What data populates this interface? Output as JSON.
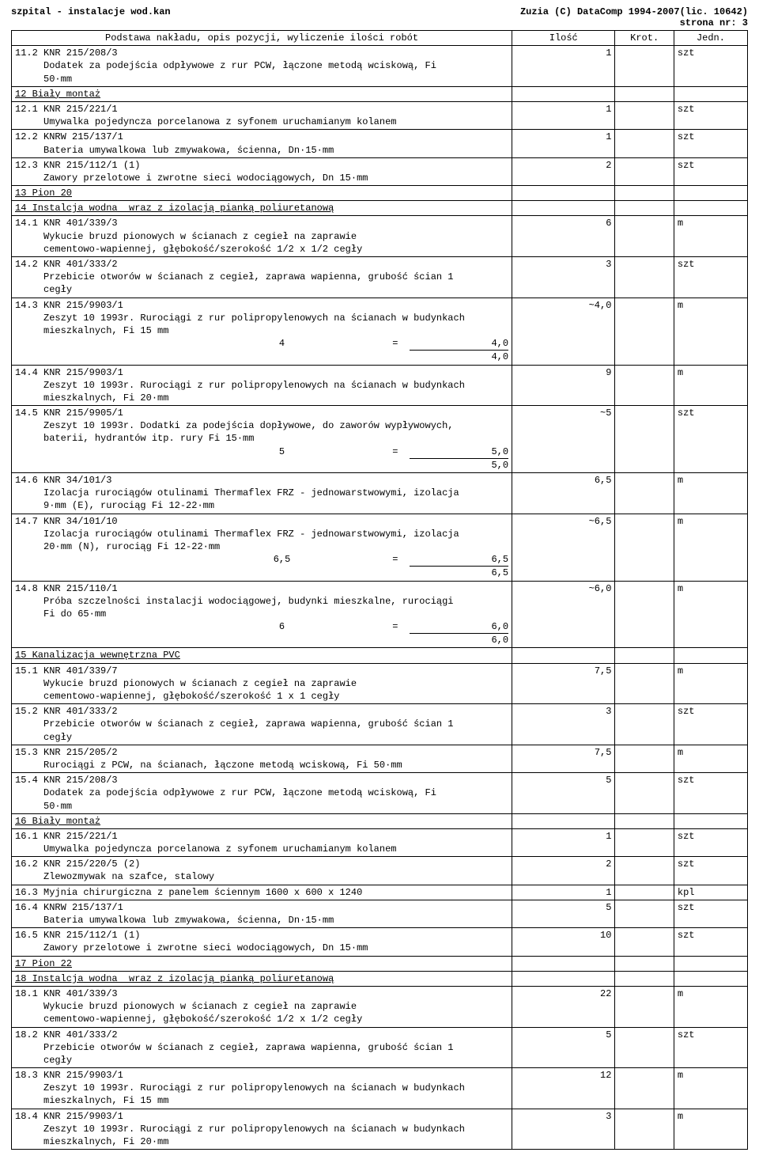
{
  "header": {
    "left": "szpital -  instalacje wod.kan",
    "right1": "Zuzia (C) DataComp 1994-2007(lic. 10642)",
    "right2": "strona nr:   3"
  },
  "table": {
    "columns": [
      "Podstawa nakładu, opis pozycji, wyliczenie ilości robót",
      "Ilość",
      "Krot.",
      "Jedn."
    ],
    "rows": [
      {
        "desc": "11.2 KNR 215/208/3\n     Dodatek za podejścia odpływowe z rur PCW, łączone metodą wciskową, Fi\n     50·mm",
        "ilosc": "1",
        "jedn": "szt"
      },
      {
        "desc": "12 Biały montaż",
        "section": true
      },
      {
        "desc": "12.1 KNR 215/221/1\n     Umywalka pojedyncza porcelanowa z syfonem uruchamianym kolanem",
        "ilosc": "1",
        "jedn": "szt"
      },
      {
        "desc": "12.2 KNRW 215/137/1\n     Bateria umywalkowa lub zmywakowa, ścienna, Dn·15·mm",
        "ilosc": "1",
        "jedn": "szt"
      },
      {
        "desc": "12.3 KNR 215/112/1 (1)\n     Zawory przelotowe i zwrotne sieci wodociągowych, Dn 15·mm",
        "ilosc": "2",
        "jedn": "szt"
      },
      {
        "desc": "13 Pion 20",
        "section": true
      },
      {
        "desc": "14 Instalcja wodna  wraz z izolacją pianką poliuretanową",
        "section": true
      },
      {
        "desc": "14.1 KNR 401/339/3\n     Wykucie bruzd pionowych w ścianach z cegieł na zaprawie\n     cementowo-wapiennej, głębokość/szerokość 1/2 x 1/2 cegły",
        "ilosc": "6",
        "jedn": "m"
      },
      {
        "desc": "14.2 KNR 401/333/2\n     Przebicie otworów w ścianach z cegieł, zaprawa wapienna, grubość ścian 1\n     cegły",
        "ilosc": "3",
        "jedn": "szt"
      },
      {
        "desc": "14.3 KNR 215/9903/1\n     Zeszyt 10 1993r. Rurociągi z rur polipropylenowych na ścianach w budynkach\n     mieszkalnych, Fi 15 mm",
        "calc": {
          "lhs": "4",
          "rhs": "4,0",
          "total": "4,0"
        },
        "ilosc": "~4,0",
        "jedn": "m"
      },
      {
        "desc": "14.4 KNR 215/9903/1\n     Zeszyt 10 1993r. Rurociągi z rur polipropylenowych na ścianach w budynkach\n     mieszkalnych, Fi 20·mm",
        "ilosc": "9",
        "jedn": "m"
      },
      {
        "desc": "14.5 KNR 215/9905/1\n     Zeszyt 10 1993r. Dodatki za podejścia dopływowe, do zaworów wypływowych,\n     baterii, hydrantów itp. rury Fi 15·mm",
        "calc": {
          "lhs": "5",
          "rhs": "5,0",
          "total": "5,0"
        },
        "ilosc": "~5",
        "jedn": "szt"
      },
      {
        "desc": "14.6 KNR 34/101/3\n     Izolacja rurociągów otulinami Thermaflex FRZ - jednowarstwowymi, izolacja\n     9·mm (E), rurociąg Fi 12-22·mm",
        "ilosc": "6,5",
        "jedn": "m"
      },
      {
        "desc": "14.7 KNR 34/101/10\n     Izolacja rurociągów otulinami Thermaflex FRZ - jednowarstwowymi, izolacja\n     20·mm (N), rurociąg Fi 12-22·mm",
        "calc": {
          "lhs": "6,5",
          "rhs": "6,5",
          "total": "6,5"
        },
        "ilosc": "~6,5",
        "jedn": "m"
      },
      {
        "desc": "14.8 KNR 215/110/1\n     Próba szczelności instalacji wodociągowej, budynki mieszkalne, rurociągi\n     Fi do 65·mm",
        "calc": {
          "lhs": "6",
          "rhs": "6,0",
          "total": "6,0"
        },
        "ilosc": "~6,0",
        "jedn": "m"
      },
      {
        "desc": "15 Kanalizacja wewnętrzna PVC",
        "section": true
      },
      {
        "desc": "15.1 KNR 401/339/7\n     Wykucie bruzd pionowych w ścianach z cegieł na zaprawie\n     cementowo-wapiennej, głębokość/szerokość 1 x 1 cegły",
        "ilosc": "7,5",
        "jedn": "m"
      },
      {
        "desc": "15.2 KNR 401/333/2\n     Przebicie otworów w ścianach z cegieł, zaprawa wapienna, grubość ścian 1\n     cegły",
        "ilosc": "3",
        "jedn": "szt"
      },
      {
        "desc": "15.3 KNR 215/205/2\n     Rurociągi z PCW, na ścianach, łączone metodą wciskową, Fi 50·mm",
        "ilosc": "7,5",
        "jedn": "m"
      },
      {
        "desc": "15.4 KNR 215/208/3\n     Dodatek za podejścia odpływowe z rur PCW, łączone metodą wciskową, Fi\n     50·mm",
        "ilosc": "5",
        "jedn": "szt"
      },
      {
        "desc": "16 Biały montaż",
        "section": true
      },
      {
        "desc": "16.1 KNR 215/221/1\n     Umywalka pojedyncza porcelanowa z syfonem uruchamianym kolanem",
        "ilosc": "1",
        "jedn": "szt"
      },
      {
        "desc": "16.2 KNR 215/220/5 (2)\n     Zlewozmywak na szafce, stalowy",
        "ilosc": "2",
        "jedn": "szt"
      },
      {
        "desc": "16.3 Myjnia chirurgiczna z panelem ściennym 1600 x 600 x 1240",
        "ilosc": "1",
        "jedn": "kpl"
      },
      {
        "desc": "16.4 KNRW 215/137/1\n     Bateria umywalkowa lub zmywakowa, ścienna, Dn·15·mm",
        "ilosc": "5",
        "jedn": "szt"
      },
      {
        "desc": "16.5 KNR 215/112/1 (1)\n     Zawory przelotowe i zwrotne sieci wodociągowych, Dn 15·mm",
        "ilosc": "10",
        "jedn": "szt"
      },
      {
        "desc": "17 Pion 22",
        "section": true
      },
      {
        "desc": "18 Instalcja wodna  wraz z izolacją pianką poliuretanową",
        "section": true
      },
      {
        "desc": "18.1 KNR 401/339/3\n     Wykucie bruzd pionowych w ścianach z cegieł na zaprawie\n     cementowo-wapiennej, głębokość/szerokość 1/2 x 1/2 cegły",
        "ilosc": "22",
        "jedn": "m"
      },
      {
        "desc": "18.2 KNR 401/333/2\n     Przebicie otworów w ścianach z cegieł, zaprawa wapienna, grubość ścian 1\n     cegły",
        "ilosc": "5",
        "jedn": "szt"
      },
      {
        "desc": "18.3 KNR 215/9903/1\n     Zeszyt 10 1993r. Rurociągi z rur polipropylenowych na ścianach w budynkach\n     mieszkalnych, Fi 15 mm",
        "ilosc": "12",
        "jedn": "m"
      },
      {
        "desc": "18.4 KNR 215/9903/1\n     Zeszyt 10 1993r. Rurociągi z rur polipropylenowych na ścianach w budynkach\n     mieszkalnych, Fi 20·mm",
        "ilosc": "3",
        "jedn": "m"
      }
    ]
  }
}
